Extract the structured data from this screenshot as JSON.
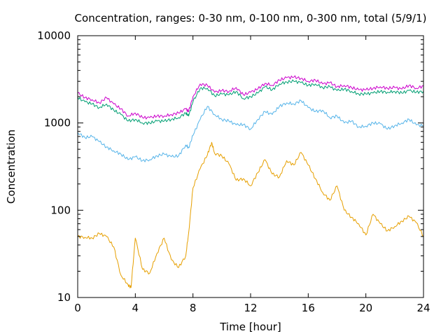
{
  "chart_data": {
    "type": "line",
    "title": "Concentration, ranges: 0-30 nm, 0-100 nm, 0-300 nm, total (5/9/1)",
    "xlabel": "Time [hour]",
    "ylabel": "Concentration",
    "xlim": [
      0,
      24
    ],
    "ylim": [
      10,
      10000
    ],
    "y_scale": "log",
    "grid": false,
    "legend": "none",
    "x_ticks": [
      0,
      4,
      8,
      12,
      16,
      20,
      24
    ],
    "x_tick_labels": [
      "0",
      "4",
      "8",
      "12",
      "16",
      "20",
      "24"
    ],
    "y_ticks": [
      10,
      100,
      1000,
      10000
    ],
    "y_tick_labels": [
      "10",
      "100",
      "1000",
      "10000"
    ],
    "series": [
      {
        "color": "#e69f00",
        "x": [
          0,
          0.5,
          1,
          1.5,
          2,
          2.5,
          3,
          3.5,
          3.7,
          4,
          4.5,
          5,
          5.5,
          6,
          6.5,
          7,
          7.5,
          7.7,
          8,
          8.5,
          9,
          9.3,
          9.5,
          10,
          10.5,
          11,
          11.5,
          12,
          12.5,
          13,
          13.5,
          14,
          14.5,
          15,
          15.5,
          16,
          16.5,
          17,
          17.5,
          18,
          18.5,
          19,
          19.5,
          20,
          20.5,
          21,
          21.5,
          22,
          22.5,
          23,
          23.5,
          24
        ],
        "values": [
          50,
          49,
          48,
          54,
          50,
          38,
          18,
          14,
          13,
          48,
          21,
          19,
          32,
          48,
          27,
          22,
          30,
          55,
          180,
          300,
          430,
          600,
          450,
          420,
          340,
          220,
          230,
          190,
          270,
          380,
          260,
          240,
          370,
          330,
          460,
          330,
          230,
          160,
          130,
          190,
          100,
          83,
          70,
          52,
          90,
          70,
          58,
          65,
          75,
          85,
          72,
          50
        ]
      },
      {
        "color": "#56b4e9",
        "x": [
          0,
          0.5,
          1,
          1.5,
          2,
          2.5,
          3,
          3.5,
          4,
          4.5,
          5,
          5.5,
          6,
          6.5,
          7,
          7.5,
          7.7,
          8,
          8.5,
          9,
          9.5,
          10,
          10.5,
          11,
          11.5,
          12,
          12.5,
          13,
          13.5,
          14,
          14.5,
          15,
          15.5,
          16,
          16.5,
          17,
          17.5,
          18,
          18.5,
          19,
          19.5,
          20,
          20.5,
          21,
          21.5,
          22,
          22.5,
          23,
          23.5,
          24
        ],
        "values": [
          780,
          680,
          700,
          610,
          530,
          480,
          440,
          380,
          410,
          370,
          380,
          420,
          440,
          410,
          420,
          560,
          520,
          720,
          1100,
          1550,
          1250,
          1100,
          1050,
          950,
          960,
          850,
          1100,
          1350,
          1250,
          1550,
          1700,
          1650,
          1800,
          1500,
          1350,
          1400,
          1150,
          1200,
          1000,
          1050,
          900,
          920,
          1000,
          980,
          850,
          930,
          1000,
          1100,
          950,
          930
        ]
      },
      {
        "color": "#009e73",
        "x": [
          0,
          0.5,
          1,
          1.5,
          2,
          2.5,
          3,
          3.5,
          4,
          4.5,
          5,
          5.5,
          6,
          6.5,
          7,
          7.5,
          7.7,
          8,
          8.5,
          9,
          9.5,
          10,
          10.5,
          11,
          11.5,
          12,
          12.5,
          13,
          13.5,
          14,
          14.5,
          15,
          15.5,
          16,
          16.5,
          17,
          17.5,
          18,
          18.5,
          19,
          19.5,
          20,
          20.5,
          21,
          21.5,
          22,
          22.5,
          23,
          23.5,
          24
        ],
        "values": [
          1950,
          1750,
          1650,
          1500,
          1650,
          1400,
          1250,
          1050,
          1100,
          1000,
          1000,
          1050,
          1050,
          1100,
          1150,
          1300,
          1200,
          1750,
          2500,
          2500,
          2050,
          2150,
          2100,
          2300,
          1900,
          2000,
          2200,
          2600,
          2400,
          2800,
          2950,
          3000,
          2900,
          2700,
          2800,
          2550,
          2600,
          2350,
          2450,
          2300,
          2150,
          2150,
          2200,
          2300,
          2250,
          2300,
          2200,
          2350,
          2250,
          2300
        ]
      },
      {
        "color": "#cc00cc",
        "x": [
          0,
          0.5,
          1,
          1.5,
          2,
          2.5,
          3,
          3.5,
          4,
          4.5,
          5,
          5.5,
          6,
          6.5,
          7,
          7.5,
          7.7,
          8,
          8.5,
          9,
          9.5,
          10,
          10.5,
          11,
          11.5,
          12,
          12.5,
          13,
          13.5,
          14,
          14.5,
          15,
          15.5,
          16,
          16.5,
          17,
          17.5,
          18,
          18.5,
          19,
          19.5,
          20,
          20.5,
          21,
          21.5,
          22,
          22.5,
          23,
          23.5,
          24
        ],
        "values": [
          2200,
          1950,
          1850,
          1700,
          1950,
          1650,
          1450,
          1200,
          1300,
          1150,
          1150,
          1200,
          1200,
          1250,
          1300,
          1450,
          1350,
          2000,
          2800,
          2700,
          2250,
          2350,
          2300,
          2550,
          2100,
          2250,
          2450,
          2850,
          2700,
          3100,
          3300,
          3350,
          3250,
          3000,
          3100,
          2800,
          2900,
          2600,
          2700,
          2550,
          2400,
          2400,
          2500,
          2600,
          2500,
          2550,
          2450,
          2700,
          2500,
          2650
        ]
      }
    ]
  }
}
